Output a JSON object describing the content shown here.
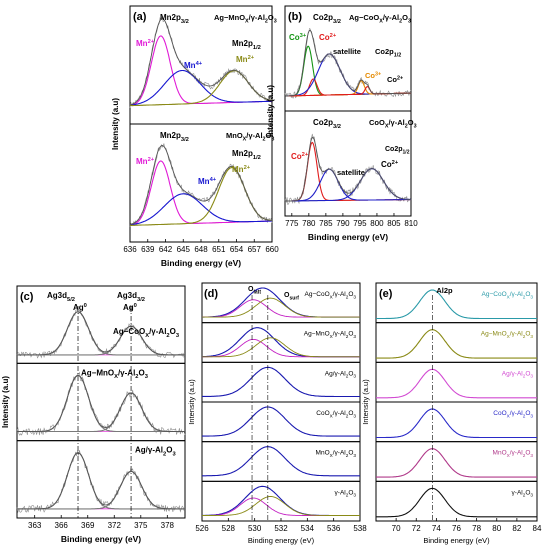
{
  "colors": {
    "mn2": "#e01ad6",
    "mn4": "#1717d0",
    "mn2sat": "#8a8a16",
    "co3": "#139413",
    "co2": "#e01b1b",
    "sat": "#2020c8",
    "co3sat": "#e58a00",
    "fit": "#555555",
    "raw": "#8c8c8c",
    "bg": "#8a7a2a",
    "ag": "#7a7a7a"
  },
  "chart_data": [
    {
      "id": "a",
      "type": "line",
      "panel_label": "(a)",
      "xlabel": "Binding energy (eV)",
      "ylabel": "Intensity (a.u)",
      "xlim": [
        636,
        660
      ],
      "xticks": [
        636,
        639,
        642,
        645,
        648,
        651,
        654,
        657,
        660
      ],
      "subplots": [
        {
          "sample": "Ag−MnOx/γ-Al2O3",
          "labels": [
            "Mn2p3/2",
            "Mn2p1/2",
            "Mn2+",
            "Mn4+",
            "Mn2+"
          ],
          "components": [
            {
              "name": "Mn2+",
              "center": 641.2,
              "height": 0.78
            },
            {
              "name": "Mn4+",
              "center": 644.8,
              "height": 0.38
            },
            {
              "name": "Mn2+ sat",
              "center": 653.6,
              "height": 0.36
            }
          ]
        },
        {
          "sample": "MnOx/γ-Al2O3",
          "labels": [
            "Mn2p3/2",
            "Mn2p1/2",
            "Mn2+",
            "Mn4+",
            "Mn2+"
          ],
          "components": [
            {
              "name": "Mn2+",
              "center": 641.2,
              "height": 0.72
            },
            {
              "name": "Mn4+",
              "center": 645.0,
              "height": 0.34
            },
            {
              "name": "Mn2+ sat",
              "center": 653.2,
              "height": 0.62
            }
          ]
        }
      ]
    },
    {
      "id": "b",
      "type": "line",
      "panel_label": "(b)",
      "xlabel": "Binding energy (eV)",
      "ylabel": "Intensity (a.u)",
      "xlim": [
        773,
        810
      ],
      "xticks": [
        775,
        780,
        785,
        790,
        795,
        800,
        805,
        810
      ],
      "subplots": [
        {
          "sample": "Ag−CoOx/γ-Al2O3",
          "labels": [
            "Co2p3/2",
            "Co3+",
            "Co2+",
            "satellite",
            "Co2p1/2",
            "Co3+",
            "Co2+"
          ],
          "components": [
            {
              "name": "Co3+",
              "center": 779.8,
              "height": 0.66
            },
            {
              "name": "Co2+",
              "center": 781.3,
              "height": 0.22
            },
            {
              "name": "satellite",
              "center": 786.0,
              "height": 0.55
            },
            {
              "name": "Co3+ 1/2",
              "center": 795.4,
              "height": 0.18
            },
            {
              "name": "Co2+ 1/2",
              "center": 797.2,
              "height": 0.1
            }
          ]
        },
        {
          "sample": "CoOx/γ-Al2O3",
          "labels": [
            "Co2p3/2",
            "Co2+",
            "satellite",
            "Co2p1/2",
            "Co2+"
          ],
          "components": [
            {
              "name": "Co2+",
              "center": 781.0,
              "height": 0.78
            },
            {
              "name": "satellite",
              "center": 786.0,
              "height": 0.42
            },
            {
              "name": "Co2+ 1/2",
              "center": 798.5,
              "height": 0.42
            }
          ]
        }
      ]
    },
    {
      "id": "c",
      "type": "line",
      "panel_label": "(c)",
      "xlabel": "Binding energy (eV)",
      "ylabel": "Intensity (a.u)",
      "xlim": [
        361,
        380
      ],
      "xticks": [
        363,
        366,
        369,
        372,
        375,
        378
      ],
      "markers": [
        367.9,
        373.9
      ],
      "peak_labels": [
        "Ag3d5/2",
        "Ag3d3/2",
        "Ag0",
        "Ag0"
      ],
      "subplots": [
        {
          "sample": "Ag−CoOx/γ-Al2O3",
          "components": [
            {
              "center": 367.9,
              "height": 0.9
            },
            {
              "center": 373.9,
              "height": 0.6
            }
          ]
        },
        {
          "sample": "Ag−MnOx/γ-Al2O3",
          "components": [
            {
              "center": 367.9,
              "height": 0.9
            },
            {
              "center": 373.9,
              "height": 0.62
            }
          ]
        },
        {
          "sample": "Ag/γ-Al2O3",
          "components": [
            {
              "center": 367.9,
              "height": 0.9
            },
            {
              "center": 373.9,
              "height": 0.6
            }
          ]
        }
      ]
    },
    {
      "id": "d",
      "type": "line",
      "panel_label": "(d)",
      "xlabel": "Binding energy (eV)",
      "ylabel": "Intensity (a.u)",
      "xlim": [
        526,
        538
      ],
      "xticks": [
        526,
        528,
        530,
        532,
        534,
        536,
        538
      ],
      "markers": [
        529.8,
        531.0
      ],
      "peak_labels": [
        "Olatt",
        "Osurf"
      ],
      "subplots": [
        {
          "sample": "Ag−CoOx/γ-Al2O3",
          "center": 530.6,
          "deconvoluted": true
        },
        {
          "sample": "Ag−MnOx/γ-Al2O3",
          "center": 530.2,
          "deconvoluted": true
        },
        {
          "sample": "Ag/γ-Al2O3",
          "center": 531.0,
          "deconvoluted": false
        },
        {
          "sample": "CoOx/γ-Al2O3",
          "center": 531.0,
          "deconvoluted": false
        },
        {
          "sample": "MnOx/γ-Al2O3",
          "center": 531.0,
          "deconvoluted": false
        },
        {
          "sample": "γ-Al2O3",
          "center": 530.6,
          "deconvoluted": true
        }
      ]
    },
    {
      "id": "e",
      "type": "line",
      "panel_label": "(e)",
      "xlabel": "Binding energy (eV)",
      "ylabel": "Intensity (a.u)",
      "xlim": [
        68,
        84
      ],
      "xticks": [
        70,
        72,
        74,
        76,
        78,
        80,
        82,
        84
      ],
      "markers": [
        73.6
      ],
      "peak_labels": [
        "Al2p"
      ],
      "subplots": [
        {
          "sample": "Ag−CoOx/γ-Al2O3",
          "color": "#2a9aa8"
        },
        {
          "sample": "Ag−MnOx/γ-Al2O3",
          "color": "#8a8a16"
        },
        {
          "sample": "Ag/γ-Al2O3",
          "color": "#d24bd2"
        },
        {
          "sample": "CoOx/γ-Al2O3",
          "color": "#2a2ac8"
        },
        {
          "sample": "MnOx/γ-Al2O3",
          "color": "#b03a8a"
        },
        {
          "sample": "γ-Al2O3",
          "color": "#111111"
        }
      ]
    }
  ]
}
